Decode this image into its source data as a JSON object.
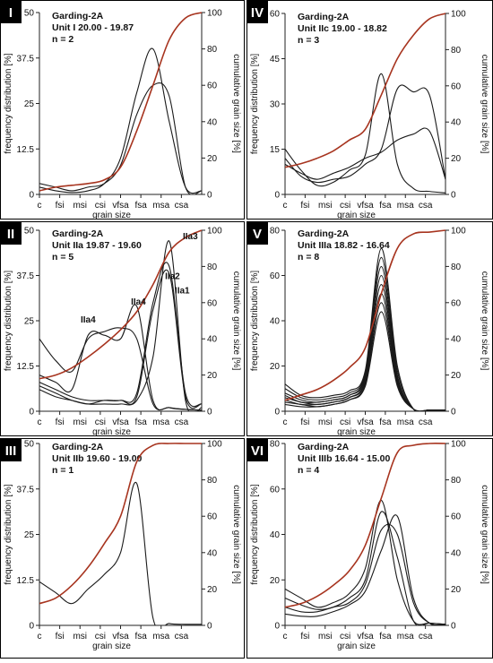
{
  "chart_data": [
    {
      "type": "line",
      "panel": "I",
      "title_lines": [
        "Garding-2A",
        "Unit I 20.00 - 19.87",
        "n = 2"
      ],
      "xlabel": "grain size",
      "ylabel": "frequency distribution [%]",
      "y2label": "cumulative grain size [%]",
      "x_ticks": [
        "c",
        "fsi",
        "msi",
        "csi",
        "vfsa",
        "fsa",
        "msa",
        "csa"
      ],
      "ylim": [
        0,
        50
      ],
      "y_ticks": [
        0,
        12.5,
        25,
        37.5,
        50
      ],
      "y_tick_labels": [
        "0",
        "12.5",
        "25",
        "37.5",
        "50"
      ],
      "y2lim": [
        0,
        100
      ],
      "y2_ticks": [
        0,
        20,
        40,
        60,
        80,
        100
      ],
      "series": [
        {
          "values": [
            2,
            1,
            0.5,
            1,
            3,
            10,
            28,
            40,
            20,
            2,
            1
          ]
        },
        {
          "values": [
            3,
            2,
            1,
            2,
            3,
            8,
            22,
            30,
            27,
            2,
            1
          ]
        }
      ],
      "cumulative": [
        2,
        4,
        5,
        6,
        8,
        15,
        35,
        60,
        85,
        97,
        100
      ]
    },
    {
      "type": "line",
      "panel": "IV",
      "title_lines": [
        "Garding-2A",
        "Unit IIc 19.00 - 18.82",
        "n = 3"
      ],
      "xlabel": "grain size",
      "ylabel": "frequency distribution [%]",
      "y2label": "cumulative grain size [%]",
      "x_ticks": [
        "c",
        "fsi",
        "msi",
        "csi",
        "vfsa",
        "fsa",
        "msa",
        "csa"
      ],
      "ylim": [
        0,
        60
      ],
      "y_ticks": [
        0,
        15,
        30,
        45,
        60
      ],
      "y_tick_labels": [
        "0",
        "15",
        "30",
        "45",
        "60"
      ],
      "y2lim": [
        0,
        100
      ],
      "y2_ticks": [
        0,
        20,
        40,
        60,
        80,
        100
      ],
      "series": [
        {
          "values": [
            15,
            8,
            3,
            4,
            8,
            13,
            40,
            10,
            2,
            1,
            0.5
          ]
        },
        {
          "values": [
            12,
            6,
            4,
            5,
            6,
            10,
            15,
            35,
            34,
            33,
            5
          ]
        },
        {
          "values": [
            10,
            7,
            5,
            7,
            9,
            12,
            14,
            18,
            20,
            21,
            5
          ]
        }
      ],
      "cumulative": [
        15,
        17,
        20,
        24,
        30,
        36,
        55,
        75,
        88,
        97,
        100
      ]
    },
    {
      "type": "line",
      "panel": "II",
      "title_lines": [
        "Garding-2A",
        "Unit IIa 19.87 - 19.60",
        "n = 5"
      ],
      "xlabel": "grain size",
      "ylabel": "frequency distribution [%]",
      "y2label": "cumulative grain size [%]",
      "x_ticks": [
        "c",
        "fsi",
        "msi",
        "csi",
        "vfsa",
        "fsa",
        "msa",
        "csa"
      ],
      "ylim": [
        0,
        50
      ],
      "y_ticks": [
        0,
        12.5,
        25,
        37.5,
        50
      ],
      "y_tick_labels": [
        "0",
        "12.5",
        "25",
        "37.5",
        "50"
      ],
      "y2lim": [
        0,
        100
      ],
      "y2_ticks": [
        0,
        20,
        40,
        60,
        80,
        100
      ],
      "annotations": [
        {
          "text": "IIa3",
          "x": 9.3,
          "y": 47.5
        },
        {
          "text": "IIa2",
          "x": 8.2,
          "y": 36.5
        },
        {
          "text": "IIa1",
          "x": 8.8,
          "y": 32.5
        },
        {
          "text": "IIa4",
          "x": 6.1,
          "y": 29.5
        },
        {
          "text": "IIa4",
          "x": 3.0,
          "y": 24.5
        }
      ],
      "series": [
        {
          "values": [
            20,
            14,
            11,
            20,
            22,
            23,
            20,
            2,
            1,
            0.5,
            0.3
          ]
        },
        {
          "values": [
            10,
            8,
            6,
            21,
            21,
            20,
            29,
            3,
            1,
            0.5,
            0.3
          ]
        },
        {
          "values": [
            8,
            6,
            4,
            3,
            3,
            3,
            5,
            30,
            40,
            5,
            2
          ]
        },
        {
          "values": [
            7,
            5,
            3,
            2,
            3,
            3,
            4,
            28,
            38,
            4,
            2
          ]
        },
        {
          "values": [
            6,
            4,
            3,
            2,
            2,
            2,
            3,
            15,
            47,
            3,
            1
          ]
        }
      ],
      "cumulative": [
        18,
        20,
        24,
        30,
        37,
        45,
        55,
        70,
        88,
        96,
        100
      ]
    },
    {
      "type": "line",
      "panel": "V",
      "title_lines": [
        "Garding-2A",
        "Unit IIIa 18.82 - 16.64",
        "n = 8"
      ],
      "xlabel": "grain size",
      "ylabel": "frequency distribution [%]",
      "y2label": "cumulative grain size [%]",
      "x_ticks": [
        "c",
        "fsi",
        "msi",
        "csi",
        "vfsa",
        "fsa",
        "msa",
        "csa"
      ],
      "ylim": [
        0,
        80
      ],
      "y_ticks": [
        0,
        20,
        40,
        60,
        80
      ],
      "y_tick_labels": [
        "0",
        "20",
        "40",
        "60",
        "80"
      ],
      "y2lim": [
        0,
        100
      ],
      "y2_ticks": [
        0,
        20,
        40,
        60,
        80,
        100
      ],
      "series": [
        {
          "values": [
            12,
            7,
            6,
            7,
            9,
            18,
            72,
            20,
            1,
            0.5,
            0.5
          ]
        },
        {
          "values": [
            10,
            6,
            5,
            6,
            8,
            17,
            68,
            18,
            1,
            0.5,
            0.5
          ]
        },
        {
          "values": [
            8,
            5,
            4,
            5,
            7,
            16,
            64,
            16,
            1,
            0.5,
            0.5
          ]
        },
        {
          "values": [
            7,
            4,
            4,
            5,
            7,
            15,
            60,
            15,
            1,
            0.5,
            0.5
          ]
        },
        {
          "values": [
            6,
            4,
            3,
            4,
            6,
            14,
            56,
            14,
            1,
            0.5,
            0.5
          ]
        },
        {
          "values": [
            5,
            3,
            3,
            4,
            6,
            13,
            52,
            13,
            1,
            0.5,
            0.5
          ]
        },
        {
          "values": [
            4,
            3,
            2,
            3,
            5,
            12,
            48,
            12,
            1,
            0.5,
            0.5
          ]
        },
        {
          "values": [
            3,
            2,
            2,
            3,
            5,
            11,
            44,
            11,
            1,
            0.5,
            0.5
          ]
        }
      ],
      "cumulative": [
        6,
        9,
        12,
        17,
        24,
        35,
        65,
        90,
        98,
        99,
        100
      ]
    },
    {
      "type": "line",
      "panel": "III",
      "title_lines": [
        "Garding-2A",
        "Unit IIb 19.60 - 19.00",
        "n = 1"
      ],
      "xlabel": "grain size",
      "ylabel": "frequency distribution [%]",
      "y2label": "cumulative grain size [%]",
      "x_ticks": [
        "c",
        "fsi",
        "msi",
        "csi",
        "vfsa",
        "fsa",
        "msa",
        "csa"
      ],
      "ylim": [
        0,
        50
      ],
      "y_ticks": [
        0,
        12.5,
        25,
        37.5,
        50
      ],
      "y_tick_labels": [
        "0",
        "12.5",
        "25",
        "37.5",
        "50"
      ],
      "y2lim": [
        0,
        100
      ],
      "y2_ticks": [
        0,
        20,
        40,
        60,
        80,
        100
      ],
      "series": [
        {
          "values": [
            12,
            9,
            6,
            10,
            14,
            20,
            39,
            2,
            0.5,
            0.3,
            0.3
          ]
        }
      ],
      "cumulative": [
        12,
        15,
        22,
        32,
        45,
        60,
        90,
        99,
        100,
        100,
        100
      ]
    },
    {
      "type": "line",
      "panel": "VI",
      "title_lines": [
        "Garding-2A",
        "Unit IIIb 16.64 - 15.00",
        "n = 4"
      ],
      "xlabel": "grain size",
      "ylabel": "frequency distribution [%]",
      "y2label": "cumulative grain size [%]",
      "x_ticks": [
        "c",
        "fsi",
        "msi",
        "csi",
        "vfsa",
        "fsa",
        "msa",
        "csa"
      ],
      "ylim": [
        0,
        80
      ],
      "y_ticks": [
        0,
        20,
        40,
        60,
        80
      ],
      "y_tick_labels": [
        "0",
        "20",
        "40",
        "60",
        "80"
      ],
      "y2lim": [
        0,
        100
      ],
      "y2_ticks": [
        0,
        20,
        40,
        60,
        80,
        100
      ],
      "series": [
        {
          "values": [
            16,
            12,
            8,
            10,
            14,
            25,
            55,
            20,
            2,
            1,
            0.5
          ]
        },
        {
          "values": [
            12,
            9,
            7,
            8,
            12,
            20,
            50,
            30,
            2,
            1,
            0.5
          ]
        },
        {
          "values": [
            8,
            6,
            6,
            8,
            10,
            18,
            42,
            40,
            10,
            1,
            0.5
          ]
        },
        {
          "values": [
            5,
            4,
            4,
            6,
            9,
            15,
            33,
            48,
            12,
            1,
            0.5
          ]
        }
      ],
      "cumulative": [
        10,
        12,
        16,
        22,
        30,
        44,
        70,
        95,
        99,
        100,
        100
      ]
    }
  ],
  "colors": {
    "frequency_line": "#1a1a1a",
    "cumulative_line": "#a7341f",
    "axis": "#222222",
    "panel_border": "#000000"
  }
}
